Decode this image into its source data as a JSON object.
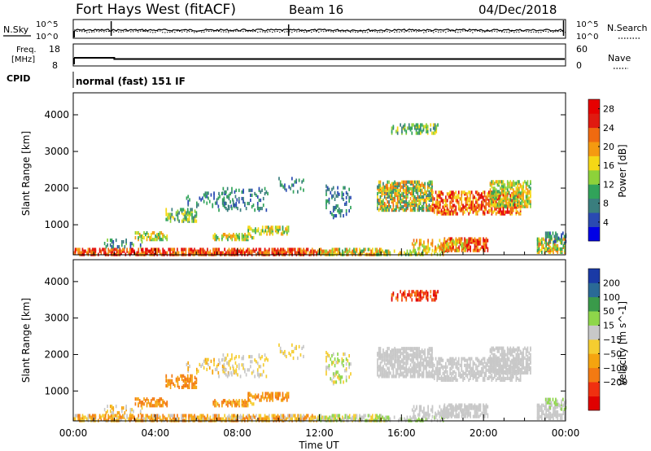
{
  "header": {
    "station": "Fort Hays West (fitACF)",
    "beam": "Beam 16",
    "date": "04/Dec/2018"
  },
  "labels": {
    "nsky": "N.Sky",
    "nsearch": "N.Search",
    "freq_line1": "Freq.",
    "freq_line2": "[MHz]",
    "nave": "Nave",
    "cpid": "CPID",
    "program": "normal (fast) 151 IF",
    "xlabel": "Time UT"
  },
  "colors": {
    "power": [
      "#0000e6",
      "#2a4ab2",
      "#3a7e7e",
      "#31a35a",
      "#8dd23a",
      "#f5d816",
      "#f59a10",
      "#f06a10",
      "#e01a10",
      "#e60000"
    ],
    "velocity": [
      "#e00000",
      "#f03010",
      "#f37a12",
      "#f5a40f",
      "#f5cd30",
      "#c8c8c8",
      "#8ed64a",
      "#3a9a4a",
      "#2a6a96",
      "#1a3aa6"
    ]
  },
  "chart_data": [
    {
      "type": "line",
      "name": "noise",
      "left_ticks": [
        "10^5",
        "10^0"
      ],
      "right_ticks": [
        "10^5",
        "10^0"
      ]
    },
    {
      "type": "line",
      "name": "frequency",
      "left_ticks": [
        "18",
        "8"
      ],
      "right_ticks": [
        "60",
        "0"
      ],
      "freq_mhz": 10.4
    },
    {
      "type": "heatmap",
      "name": "power",
      "ylabel": "Slant Range [km]",
      "yticks": [
        1000,
        2000,
        3000,
        4000
      ],
      "ylim": [
        180,
        4600
      ],
      "xlim_hours": [
        0,
        24
      ],
      "xticks": [
        "00:00",
        "04:00",
        "08:00",
        "12:00",
        "16:00",
        "20:00",
        "00:00"
      ],
      "colorbar": {
        "label": "Power [dB]",
        "ticks": [
          4,
          8,
          12,
          16,
          20,
          24,
          28
        ],
        "range": [
          0,
          30
        ]
      }
    },
    {
      "type": "heatmap",
      "name": "velocity",
      "ylabel": "Slant Range [km]",
      "yticks": [
        1000,
        2000,
        3000,
        4000
      ],
      "ylim": [
        180,
        4600
      ],
      "xlim_hours": [
        0,
        24
      ],
      "xticks": [
        "00:00",
        "04:00",
        "08:00",
        "12:00",
        "16:00",
        "20:00",
        "00:00"
      ],
      "colorbar": {
        "label": "Velocity [m s^-1]",
        "ticks": [
          "200",
          "100",
          "50",
          "15",
          "-15",
          "-50",
          "-100",
          "-200"
        ]
      }
    }
  ]
}
